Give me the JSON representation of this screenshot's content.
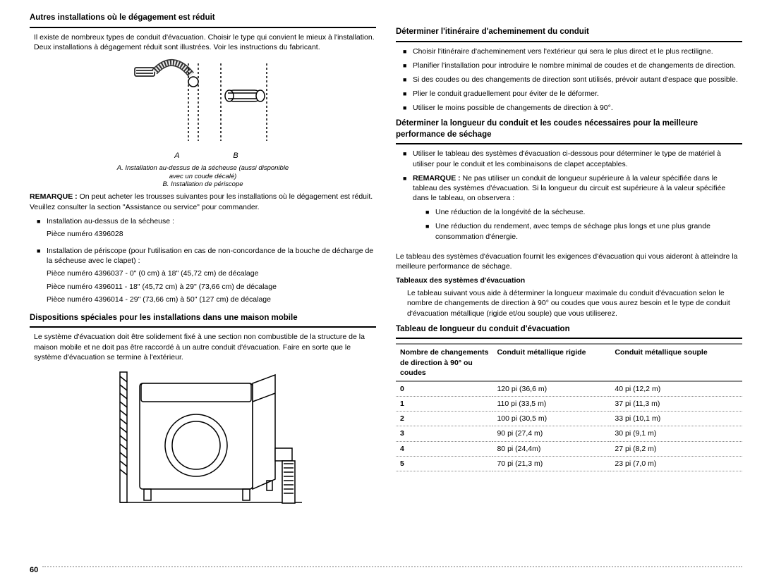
{
  "left": {
    "heading1": "Autres installations où le dégagement est réduit",
    "intro": "Il existe de nombreux types de conduit d'évacuation. Choisir le type qui convient le mieux à l'installation. Deux installations à dégagement réduit sont illustrées. Voir les instructions du fabricant.",
    "fig_label_a": "A",
    "fig_label_b": "B",
    "caption_lines": [
      "A. Installation au-dessus de la sécheuse (aussi disponible",
      "avec un coude décalé)",
      "B. Installation de périscope"
    ],
    "remarque_label": "REMARQUE :",
    "remarque": "On peut acheter les trousses suivantes pour les installations où le dégagement est réduit. Veuillez consulter la section \"Assistance ou service\" pour commander.",
    "kit_items": [
      {
        "title": "Installation au-dessus de la sécheuse :",
        "lines": [
          "Pièce numéro 4396028"
        ]
      },
      {
        "title": "Installation de périscope (pour l'utilisation en cas de non-concordance de la bouche de décharge de la sécheuse avec le clapet) :",
        "lines": [
          "Pièce numéro 4396037 - 0\" (0 cm) à 18\" (45,72 cm) de décalage",
          "Pièce numéro 4396011 - 18\" (45,72 cm) à 29\" (73,66 cm) de décalage",
          "Pièce numéro 4396014 - 29\" (73,66 cm) à 50\" (127 cm) de décalage"
        ]
      }
    ],
    "heading2": "Dispositions spéciales pour les installations dans une maison mobile",
    "mobile_text": "Le système d'évacuation doit être solidement fixé à une section non combustible de la structure de la maison mobile et ne doit pas être raccordé à un autre conduit d'évacuation. Faire en sorte que le système d'évacuation se termine à l'extérieur."
  },
  "right": {
    "heading1": "Déterminer l'itinéraire d'acheminement du conduit",
    "bullets1": [
      "Choisir l'itinéraire d'acheminement vers l'extérieur qui sera le plus direct et le plus rectiligne.",
      "Planifier l'installation pour introduire le nombre minimal de coudes et de changements de direction.",
      "Si des coudes ou des changements de direction sont utilisés, prévoir autant d'espace que possible.",
      "Plier le conduit graduellement pour éviter de le déformer.",
      "Utiliser le moins possible de changements de direction à 90°."
    ],
    "heading2": "Déterminer la longueur du conduit et les coudes nécessaires pour la meilleure performance de séchage",
    "bullets2": [
      "Utiliser le tableau des systèmes d'évacuation ci-dessous pour déterminer le type de matériel à utiliser pour le conduit et les combinaisons de clapet acceptables."
    ],
    "remarque2_label": "REMARQUE :",
    "remarque2": "Ne pas utiliser un conduit de longueur supérieure à la valeur spécifiée dans le tableau des systèmes d'évacuation. Si la longueur du circuit est supérieure à la valeur spécifiée dans le tableau, on observera :",
    "sub_bullets": [
      "Une réduction de la longévité de la sécheuse.",
      "Une réduction du rendement, avec temps de séchage plus longs et une plus grande consommation d'énergie."
    ],
    "after_remarque": "Le tableau des systèmes d'évacuation fournit les exigences d'évacuation qui vous aideront à atteindre la meilleure performance de séchage.",
    "tables_heading": "Tableaux des systèmes d'évacuation",
    "tables_text": "Le tableau suivant vous aide à déterminer la longueur maximale du conduit d'évacuation selon le nombre de changements de direction à 90° ou coudes que vous aurez besoin et le type de conduit d'évacuation métallique (rigide et/ou souple) que vous utiliserez.",
    "table_heading": "Tableau de longueur du conduit d'évacuation",
    "table": {
      "col1": "Nombre de changements de direction à 90° ou coudes",
      "col2": "Conduit métallique rigide",
      "col3": "Conduit métallique souple",
      "rows": [
        [
          "0",
          "120 pi (36,6 m)",
          "40 pi (12,2 m)"
        ],
        [
          "1",
          "110 pi (33,5 m)",
          "37 pi (11,3 m)"
        ],
        [
          "2",
          "100 pi (30,5 m)",
          "33 pi (10,1 m)"
        ],
        [
          "3",
          "90 pi (27,4 m)",
          "30 pi (9,1 m)"
        ],
        [
          "4",
          "80 pi (24,4m)",
          "27 pi (8,2 m)"
        ],
        [
          "5",
          "70 pi (21,3 m)",
          "23 pi (7,0 m)"
        ]
      ]
    }
  },
  "page_number": "60"
}
